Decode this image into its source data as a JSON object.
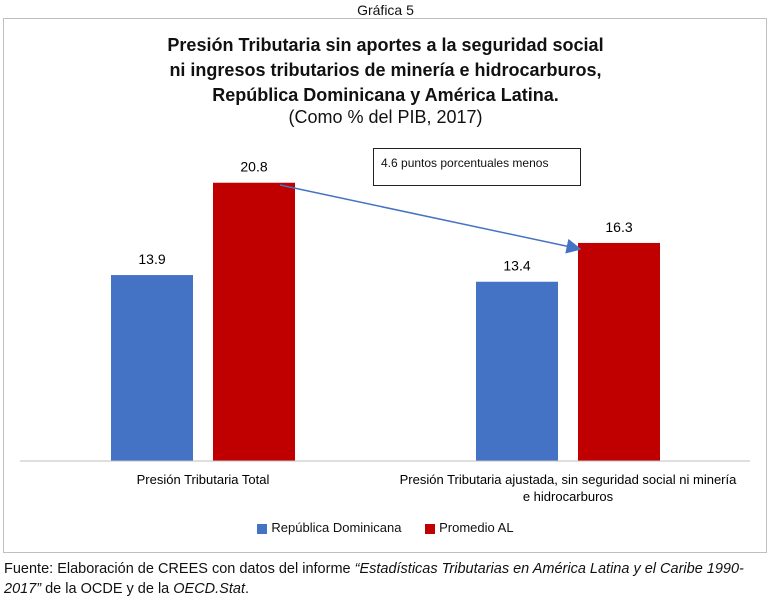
{
  "header_label": "Gráfica 5",
  "chart_data": {
    "type": "bar",
    "title_lines": [
      "Presión Tributaria sin aportes a la seguridad social",
      "ni ingresos tributarios de minería e hidrocarburos,",
      "República Dominicana y América Latina."
    ],
    "subtitle": "(Como % del PIB, 2017)",
    "categories": [
      [
        "Presión Tributaria Total"
      ],
      [
        "Presión Tributaria ajustada, sin seguridad social ni minería",
        "e hidrocarburos"
      ]
    ],
    "series": [
      {
        "name": "República Dominicana",
        "color": "#4472C4",
        "values": [
          13.9,
          13.4
        ]
      },
      {
        "name": "Promedio AL",
        "color": "#C00000",
        "values": [
          20.8,
          16.3
        ]
      }
    ],
    "ylim": [
      0,
      22.5
    ],
    "data_labels": [
      "13.9",
      "13.4",
      "20.8",
      "16.3"
    ],
    "annotation": "4.6 puntos porcentuales menos",
    "arrow_color": "#4472C4"
  },
  "source": {
    "prefix": "Fuente: Elaboración de CREES con datos del informe ",
    "title_italic": "“Estadísticas Tributarias en América Latina y el Caribe 1990-2017”",
    "middle": " de la OCDE y de la ",
    "stat_italic": "OECD.Stat",
    "end": "."
  }
}
